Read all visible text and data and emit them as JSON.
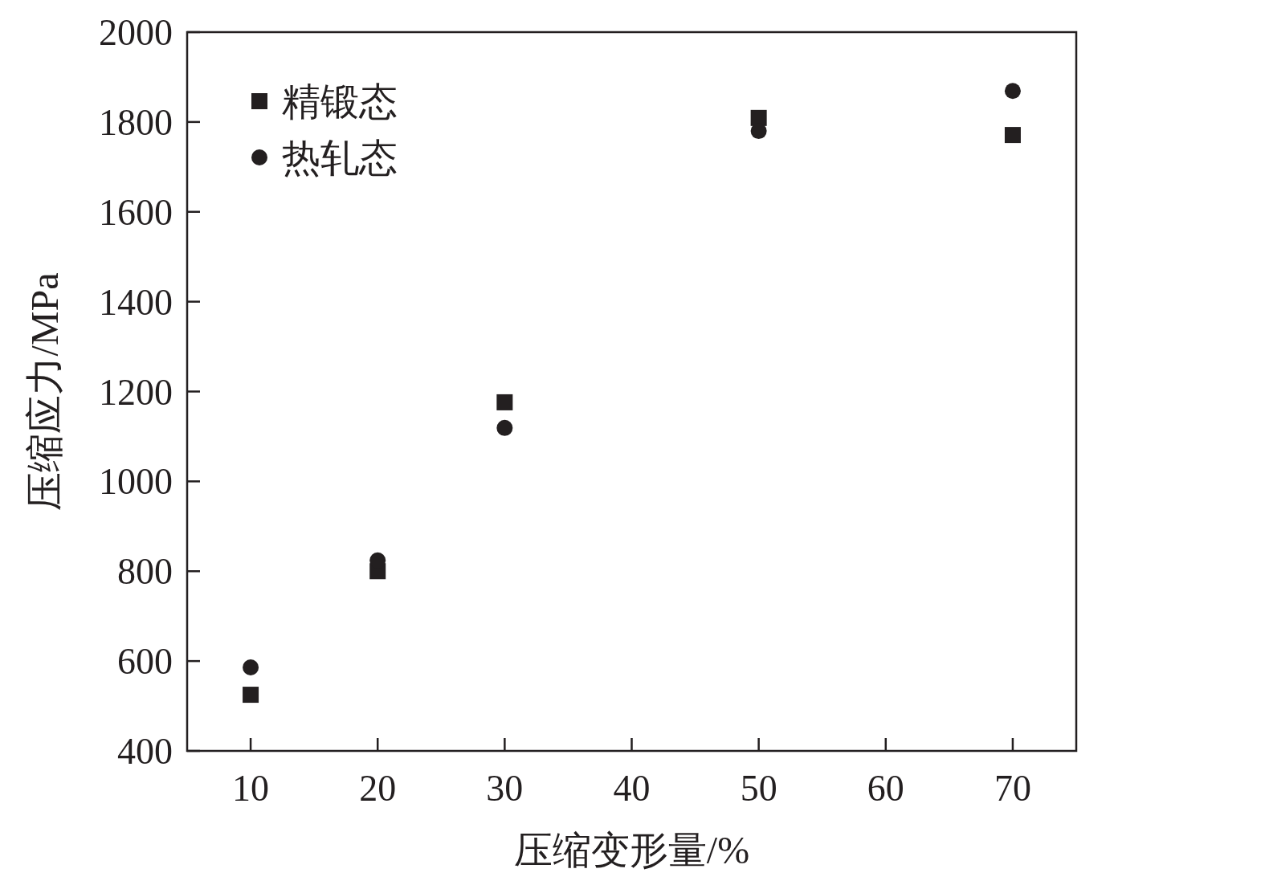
{
  "chart_data": {
    "type": "scatter",
    "xlabel": "压缩变形量/%",
    "ylabel": "压缩应力/MPa",
    "x": [
      10,
      20,
      30,
      50,
      70
    ],
    "series": [
      {
        "name": "精锻态",
        "color": "#231f20",
        "marker": "square",
        "values": [
          525,
          800,
          1176,
          1809,
          1771
        ]
      },
      {
        "name": "热轧态",
        "color": "#231f20",
        "marker": "circle",
        "values": [
          586,
          824,
          1119,
          1780,
          1869
        ]
      }
    ],
    "xlim": [
      5,
      75
    ],
    "xticks": [
      10,
      20,
      30,
      40,
      50,
      60,
      70
    ],
    "ylim": [
      400,
      2000
    ],
    "yticks": [
      400,
      600,
      800,
      1000,
      1200,
      1400,
      1600,
      1800,
      2000
    ],
    "grid": false,
    "legend": "top left"
  }
}
